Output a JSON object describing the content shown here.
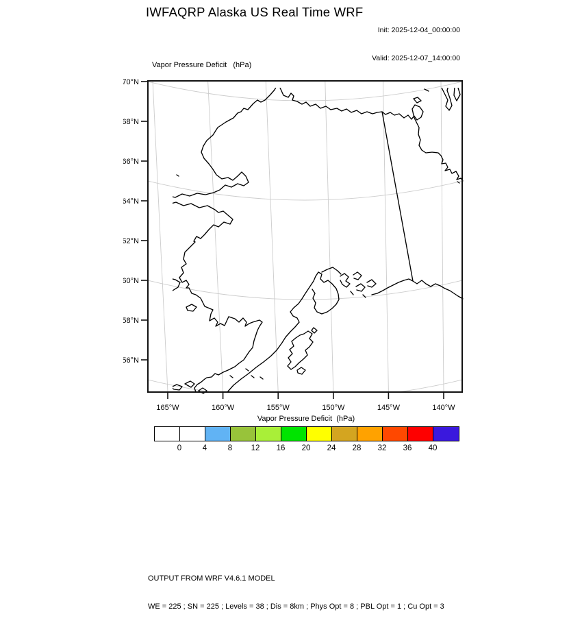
{
  "header": {
    "title": "IWFAQRP Alaska US Real Time WRF",
    "init": "Init: 2025-12-04_00:00:00",
    "valid": "Valid: 2025-12-07_14:00:00"
  },
  "map": {
    "field_label": "Vapor Pressure Deficit   (hPa)",
    "lat_tick_labels": [
      "70°N",
      "68°N",
      "66°N",
      "64°N",
      "62°N",
      "60°N",
      "58°N",
      "56°N"
    ],
    "lon_tick_labels": [
      "165°W",
      "160°W",
      "155°W",
      "150°W",
      "145°W",
      "140°W"
    ]
  },
  "colorbar": {
    "title": "Vapor Pressure Deficit  (hPa)",
    "tick_labels": [
      "0",
      "4",
      "8",
      "12",
      "16",
      "20",
      "24",
      "28",
      "32",
      "36",
      "40"
    ],
    "cell_colors": [
      "#ffffff",
      "#ffffff",
      "#61b3f4",
      "#98c33a",
      "#a9ef38",
      "#00e400",
      "#ffff00",
      "#d4a520",
      "#ffa200",
      "#ff4800",
      "#fe0000",
      "#3a18dd"
    ]
  },
  "footer": {
    "line1": "OUTPUT FROM WRF V4.6.1 MODEL",
    "line2": "WE = 225 ; SN = 225 ; Levels = 38 ; Dis = 8km ; Phys Opt = 8 ; PBL Opt = 1 ; Cu Opt = 3"
  },
  "chart_data": {
    "type": "map",
    "title": "Vapor Pressure Deficit (hPa)",
    "region": "Alaska (WRF model domain)",
    "lat_ticks_deg_n": [
      70,
      68,
      66,
      64,
      62,
      60,
      58,
      56
    ],
    "lon_ticks_deg_w": [
      165,
      160,
      155,
      150,
      145,
      140
    ],
    "colorbar_levels_hpa": [
      0,
      4,
      8,
      12,
      16,
      20,
      24,
      28,
      32,
      36,
      40
    ],
    "shaded_field": "none visible (entire map interior unshaded / below first level)",
    "legend_position": "bottom horizontal colorbar",
    "grid": "faint gray graticule on"
  }
}
